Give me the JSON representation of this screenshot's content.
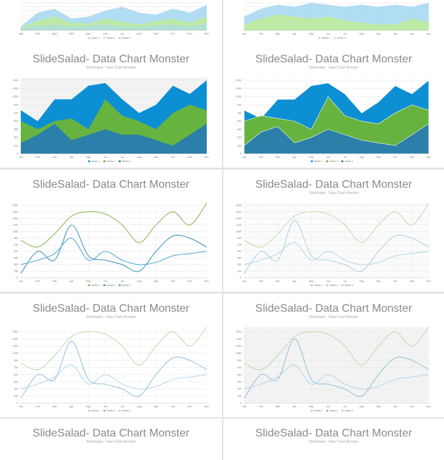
{
  "slide": {
    "title": "SlideSalad- Data Chart Monster",
    "subtitle": "SlideSalad · Data Chart Monster"
  },
  "colors": {
    "blue_dark": "#0d8fd4",
    "green": "#66b43f",
    "teal": "#2b7fa8",
    "light_blue": "#a8d9f2",
    "light_green": "#bfeaa0",
    "line_green": "#8cb85a",
    "line_teal": "#3f9ab5",
    "line_blue": "#56a9d6",
    "grid": "#e3e3e3",
    "bg_gray": "#f3f3f3"
  },
  "chart_data": [
    {
      "type": "area",
      "panel": "top-left",
      "categories": [
        "JAN",
        "FEB",
        "MAR",
        "APR",
        "MAY",
        "JUN",
        "JUL",
        "AUG",
        "SEP",
        "OCT",
        "NOV",
        "DEC"
      ],
      "series": [
        {
          "name": "Series 1",
          "values": [
            200,
            900,
            1100,
            600,
            700,
            1000,
            1200,
            900,
            800,
            1100,
            900,
            1300
          ]
        },
        {
          "name": "Series 2",
          "values": [
            150,
            500,
            700,
            400,
            350,
            600,
            450,
            300,
            500,
            600,
            400,
            700
          ]
        },
        {
          "name": "Series 3",
          "values": [
            100,
            250,
            300,
            200,
            250,
            300,
            200,
            150,
            250,
            300,
            200,
            350
          ]
        }
      ],
      "legend": "bottom",
      "legend_labels": [
        "Series 1",
        "Series 2",
        "Series 3"
      ],
      "ylim": [
        0,
        1400
      ]
    },
    {
      "type": "area",
      "panel": "top-right",
      "categories": [
        "Jan",
        "Feb",
        "Mar",
        "Apr",
        "May",
        "Jun",
        "Jul",
        "Aug",
        "Sep",
        "Oct",
        "Nov",
        "Dec"
      ],
      "series": [
        {
          "name": "Series 1",
          "values": [
            700,
            1100,
            1300,
            1200,
            1400,
            1300,
            1200,
            1300,
            1200,
            1300,
            1200,
            1400
          ]
        },
        {
          "name": "Series 2",
          "values": [
            300,
            600,
            800,
            700,
            600,
            700,
            500,
            400,
            300,
            300,
            600,
            400
          ]
        }
      ],
      "legend": "bottom",
      "legend_labels": [
        "Series 1",
        "Series 2"
      ],
      "ylim": [
        0,
        1400
      ]
    },
    {
      "type": "area",
      "panel": "row2-left",
      "title": "SlideSalad- Data Chart Monster",
      "subtitle": "SlideSalad · Data Chart Monster",
      "categories": [
        "Jan",
        "Feb",
        "Mar",
        "Apr",
        "May",
        "Jun",
        "Jul",
        "Aug",
        "Sep",
        "Oct",
        "Nov",
        "Dec"
      ],
      "series": [
        {
          "name": "Series 1",
          "values": [
            800,
            600,
            1000,
            1000,
            1250,
            1300,
            1000,
            750,
            900,
            1250,
            1100,
            1350
          ]
        },
        {
          "name": "Series 2",
          "values": [
            600,
            450,
            600,
            650,
            450,
            1000,
            700,
            600,
            450,
            750,
            900,
            800
          ]
        },
        {
          "name": "Series 3",
          "values": [
            200,
            350,
            550,
            250,
            350,
            450,
            350,
            350,
            250,
            150,
            350,
            550
          ]
        }
      ],
      "y_ticks": [
        "0",
        "150",
        "300",
        "450",
        "600",
        "750",
        "900",
        "1050",
        "1200",
        "1350"
      ],
      "legend": "bottom",
      "legend_labels": [
        "Series 1",
        "Series 2",
        "Series 3"
      ],
      "ylim": [
        0,
        1400
      ]
    },
    {
      "type": "area",
      "panel": "row2-right",
      "title": "SlideSalad- Data Chart Monster",
      "subtitle": "SlideSalad · Data Chart Monster",
      "categories": [
        "Jan",
        "Feb",
        "Mar",
        "Apr",
        "May",
        "Jun",
        "Jul",
        "Aug",
        "Sep",
        "Oct",
        "Nov",
        "Dec"
      ],
      "series": [
        {
          "name": "Series 1",
          "values": [
            800,
            650,
            1000,
            1000,
            1250,
            1300,
            1100,
            750,
            950,
            1250,
            1100,
            1350
          ]
        },
        {
          "name": "Series 2",
          "values": [
            600,
            700,
            650,
            600,
            450,
            1050,
            700,
            600,
            550,
            750,
            900,
            800
          ]
        },
        {
          "name": "Series 3",
          "values": [
            150,
            400,
            500,
            200,
            300,
            450,
            350,
            250,
            200,
            150,
            350,
            550
          ]
        }
      ],
      "y_ticks": [
        "0",
        "150",
        "300",
        "450",
        "600",
        "750",
        "900",
        "1050",
        "1200",
        "1350"
      ],
      "legend": "bottom",
      "legend_labels": [
        "Series 1",
        "Series 2",
        "Series 3"
      ],
      "ylim": [
        0,
        1400
      ]
    },
    {
      "type": "line",
      "panel": "row3-left",
      "title": "SlideSalad- Data Chart Monster",
      "categories": [
        "Jan",
        "Feb",
        "Mar",
        "Apr",
        "May",
        "Jun",
        "Jul",
        "Aug",
        "Sep",
        "Oct",
        "Nov",
        "Dec"
      ],
      "series": [
        {
          "name": "Series 1",
          "values": [
            850,
            700,
            1000,
            1400,
            1500,
            1450,
            1200,
            800,
            1200,
            1500,
            1200,
            1700
          ]
        },
        {
          "name": "Series 2",
          "values": [
            100,
            600,
            400,
            1200,
            500,
            400,
            300,
            150,
            600,
            950,
            900,
            700
          ]
        },
        {
          "name": "Series 3",
          "values": [
            300,
            400,
            550,
            900,
            400,
            600,
            400,
            300,
            350,
            500,
            550,
            600
          ]
        }
      ],
      "y_ticks": [
        "0",
        "150",
        "300",
        "450",
        "600",
        "750",
        "900",
        "1050",
        "1200",
        "1350",
        "1500",
        "1650"
      ],
      "legend": "bottom",
      "legend_labels": [
        "Series 1",
        "Series 2",
        "Series 3"
      ],
      "ylim": [
        0,
        1700
      ]
    },
    {
      "type": "line",
      "panel": "row3-right",
      "title": "SlideSalad- Data Chart Monster",
      "subtitle": "SlideSalad · Data Chart Monster",
      "categories": [
        "Jan",
        "Feb",
        "Mar",
        "Apr",
        "May",
        "Jun",
        "Jul",
        "Aug",
        "Sep",
        "Oct",
        "Nov",
        "Dec"
      ],
      "series": [
        {
          "name": "Series 1",
          "values": [
            850,
            700,
            1000,
            1400,
            1500,
            1450,
            1200,
            800,
            1200,
            1500,
            1200,
            1700
          ]
        },
        {
          "name": "Series 2",
          "values": [
            100,
            600,
            400,
            1300,
            500,
            400,
            300,
            150,
            600,
            950,
            900,
            700
          ]
        },
        {
          "name": "Series 3",
          "values": [
            300,
            400,
            550,
            800,
            400,
            600,
            400,
            300,
            350,
            500,
            550,
            600
          ]
        }
      ],
      "y_ticks": [
        "0",
        "150",
        "300",
        "450",
        "600",
        "750",
        "900",
        "1050",
        "1200",
        "1350",
        "1500",
        "1650"
      ],
      "legend": "bottom",
      "legend_labels": [
        "Series 1",
        "Series 2",
        "Series 3"
      ],
      "ylim": [
        0,
        1700
      ]
    },
    {
      "type": "line",
      "panel": "row4-left",
      "title": "SlideSalad- Data Chart Monster",
      "subtitle": "SlideSalad · Data Chart Monster",
      "categories": [
        "Jan",
        "Feb",
        "Mar",
        "Apr",
        "May",
        "Jun",
        "Jul",
        "Aug",
        "Sep",
        "Oct",
        "Nov",
        "Dec"
      ],
      "series": [
        {
          "name": "Series 1",
          "values": [
            850,
            700,
            1000,
            1400,
            1500,
            1450,
            1200,
            800,
            1200,
            1500,
            1200,
            1600
          ]
        },
        {
          "name": "Series 2",
          "values": [
            100,
            600,
            500,
            1300,
            500,
            400,
            300,
            150,
            600,
            950,
            900,
            700
          ]
        },
        {
          "name": "Series 3",
          "values": [
            300,
            400,
            550,
            800,
            400,
            600,
            400,
            300,
            350,
            500,
            550,
            600
          ]
        }
      ],
      "y_ticks": [
        "0",
        "150",
        "300",
        "450",
        "600",
        "750",
        "900",
        "1050",
        "1200",
        "1350",
        "1500"
      ],
      "legend": "bottom",
      "legend_labels": [
        "Series 1",
        "Series 2",
        "Series 3"
      ],
      "ylim": [
        0,
        1600
      ]
    },
    {
      "type": "line",
      "panel": "row4-right",
      "title": "SlideSalad- Data Chart Monster",
      "subtitle": "SlideSalad · Data Chart Monster",
      "categories": [
        "Jan",
        "Feb",
        "Mar",
        "Apr",
        "May",
        "Jun",
        "Jul",
        "Aug",
        "Sep",
        "Oct",
        "Nov",
        "Dec"
      ],
      "series": [
        {
          "name": "Series 1",
          "values": [
            850,
            700,
            1000,
            1400,
            1500,
            1450,
            1200,
            800,
            1200,
            1500,
            1200,
            1600
          ]
        },
        {
          "name": "Series 2",
          "values": [
            100,
            600,
            500,
            1350,
            500,
            400,
            300,
            150,
            600,
            950,
            900,
            700
          ]
        },
        {
          "name": "Series 3",
          "values": [
            300,
            400,
            550,
            800,
            400,
            600,
            400,
            300,
            350,
            500,
            550,
            600
          ]
        }
      ],
      "y_ticks": [
        "0",
        "150",
        "300",
        "450",
        "600",
        "750",
        "900",
        "1050",
        "1200",
        "1350",
        "1500"
      ],
      "legend": "bottom",
      "legend_labels": [
        "Series 1",
        "Series 2",
        "Series 3"
      ],
      "ylim": [
        0,
        1600
      ]
    },
    {
      "type": "line",
      "panel": "row5-left",
      "title": "SlideSalad- Data Chart Monster",
      "subtitle": "SlideSalad · Data Chart Monster"
    },
    {
      "type": "line",
      "panel": "row5-right",
      "title": "SlideSalad- Data Chart Monster",
      "subtitle": "SlideSalad · Data Chart Monster"
    }
  ]
}
